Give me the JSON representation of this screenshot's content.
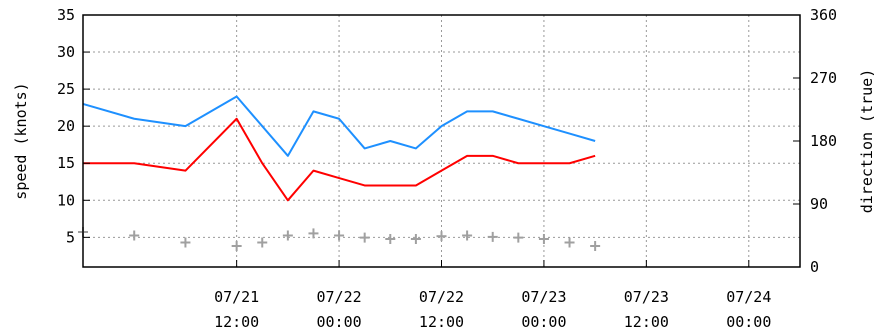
{
  "chart_data": {
    "type": "line",
    "xlabel": "",
    "ylabel": "speed (knots)",
    "y2label": "direction (true)",
    "xlim": [
      "07/20 18:00",
      "07/24 06:00"
    ],
    "x_ticks": [
      "07/21 12:00",
      "07/22 00:00",
      "07/22 12:00",
      "07/23 00:00",
      "07/23 12:00",
      "07/24 00:00"
    ],
    "x_tick_labels": [
      [
        "07/21",
        "12:00"
      ],
      [
        "07/22",
        "00:00"
      ],
      [
        "07/22",
        "12:00"
      ],
      [
        "07/23",
        "00:00"
      ],
      [
        "07/23",
        "12:00"
      ],
      [
        "07/24",
        "00:00"
      ]
    ],
    "ylim": [
      1,
      35
    ],
    "y_ticks": [
      5,
      10,
      15,
      20,
      25,
      30,
      35
    ],
    "y2lim": [
      0,
      360
    ],
    "y2_ticks": [
      0,
      90,
      180,
      270,
      360
    ],
    "grid": true,
    "legend": "none",
    "series": [
      {
        "role": "gust speed",
        "axis": "left",
        "style": "line",
        "color": "#1e90ff",
        "x": [
          "07/20 18:00",
          "07/21 00:00",
          "07/21 06:00",
          "07/21 12:00",
          "07/21 15:00",
          "07/21 18:00",
          "07/21 21:00",
          "07/22 00:00",
          "07/22 03:00",
          "07/22 06:00",
          "07/22 09:00",
          "07/22 12:00",
          "07/22 15:00",
          "07/22 18:00",
          "07/22 21:00",
          "07/23 00:00",
          "07/23 03:00",
          "07/23 06:00"
        ],
        "y": [
          23,
          21,
          20,
          24,
          20,
          16,
          22,
          21,
          17,
          18,
          17,
          20,
          22,
          22,
          21,
          20,
          19,
          18
        ]
      },
      {
        "role": "wind speed",
        "axis": "left",
        "style": "line",
        "color": "#ff0000",
        "x": [
          "07/20 18:00",
          "07/21 00:00",
          "07/21 06:00",
          "07/21 12:00",
          "07/21 15:00",
          "07/21 18:00",
          "07/21 21:00",
          "07/22 00:00",
          "07/22 03:00",
          "07/22 06:00",
          "07/22 09:00",
          "07/22 12:00",
          "07/22 15:00",
          "07/22 18:00",
          "07/22 21:00",
          "07/23 00:00",
          "07/23 03:00",
          "07/23 06:00"
        ],
        "y": [
          15,
          15,
          14,
          21,
          15,
          10,
          14,
          13,
          12,
          12,
          12,
          14,
          16,
          16,
          15,
          15,
          15,
          16
        ]
      },
      {
        "role": "wind direction",
        "axis": "right",
        "style": "markers",
        "color": "#a0a0a0",
        "x": [
          "07/20 18:00",
          "07/21 00:00",
          "07/21 06:00",
          "07/21 12:00",
          "07/21 15:00",
          "07/21 18:00",
          "07/21 21:00",
          "07/22 00:00",
          "07/22 03:00",
          "07/22 06:00",
          "07/22 09:00",
          "07/22 12:00",
          "07/22 15:00",
          "07/22 18:00",
          "07/22 21:00",
          "07/23 00:00",
          "07/23 03:00",
          "07/23 06:00"
        ],
        "y": [
          50,
          45,
          35,
          30,
          35,
          45,
          48,
          45,
          42,
          40,
          40,
          44,
          45,
          43,
          42,
          40,
          35,
          30
        ]
      }
    ]
  }
}
